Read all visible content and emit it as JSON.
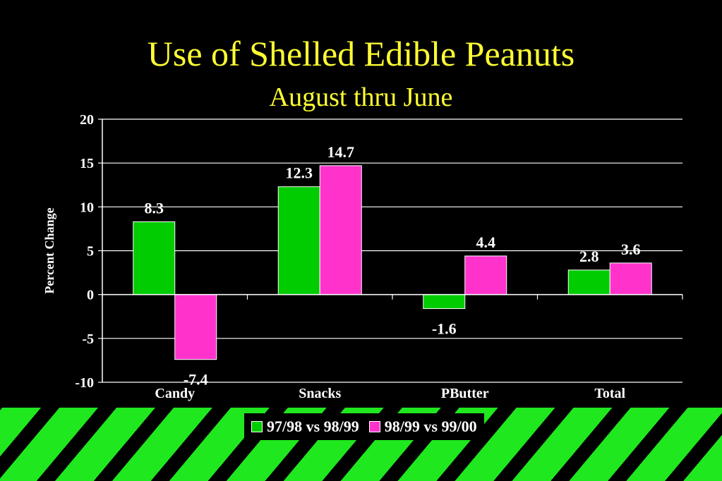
{
  "slide": {
    "title": "Use of Shelled Edible Peanuts",
    "subtitle": "August thru June"
  },
  "chart_data": {
    "type": "bar",
    "title": "Use of Shelled Edible Peanuts",
    "subtitle": "August thru June",
    "xlabel": "",
    "ylabel": "Percent Change",
    "ylim": [
      -10,
      20
    ],
    "yticks": [
      20,
      15,
      10,
      5,
      0,
      -5,
      -10
    ],
    "grid": true,
    "legend_position": "bottom",
    "categories": [
      "Candy",
      "Snacks",
      "PButter",
      "Total"
    ],
    "series": [
      {
        "name": "97/98 vs 98/99",
        "color": "#00cc00",
        "values": [
          8.3,
          12.3,
          -1.6,
          2.8
        ],
        "labels": [
          "8.3",
          "12.3",
          "-1.6",
          "2.8"
        ]
      },
      {
        "name": "98/99 vs 99/00",
        "color": "#ff33cc",
        "values": [
          -7.4,
          14.7,
          4.4,
          3.6
        ],
        "labels": [
          "-7.4",
          "14.7",
          "4.4",
          "3.6"
        ]
      }
    ]
  },
  "colors": {
    "background": "#000000",
    "title": "#ffff33",
    "text": "#ffffff",
    "stripe": "#1fe81f"
  }
}
